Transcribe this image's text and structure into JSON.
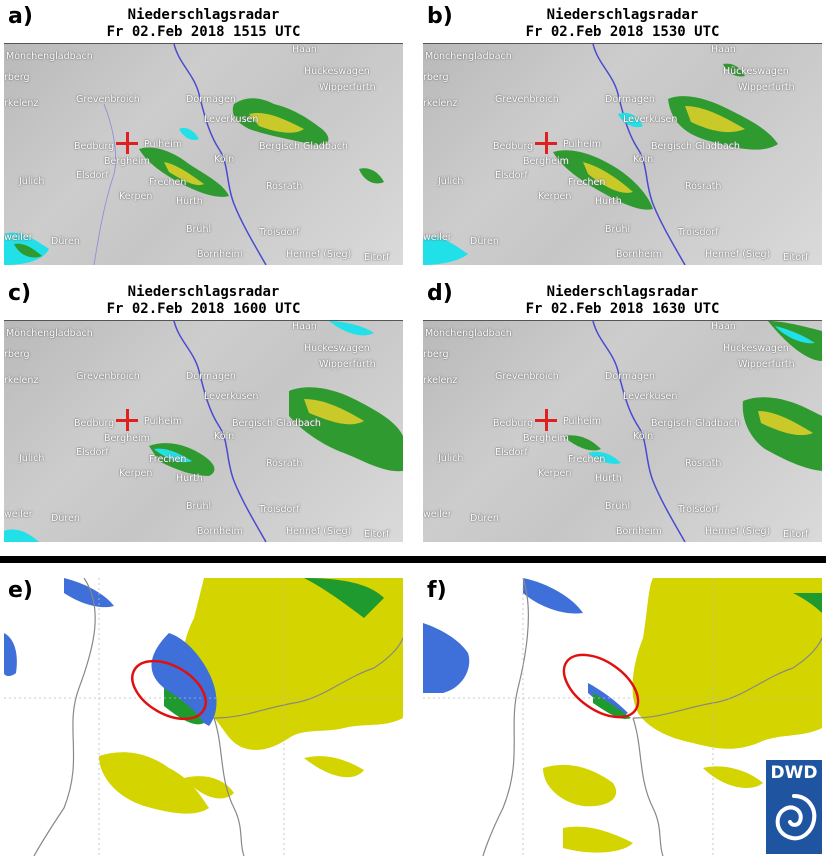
{
  "radar_title": "Niederschlagsradar",
  "radar_panels": [
    {
      "label": "a)",
      "timestamp": "Fr 02.Feb 2018 1515 UTC"
    },
    {
      "label": "b)",
      "timestamp": "Fr 02.Feb 2018 1530 UTC"
    },
    {
      "label": "c)",
      "timestamp": "Fr 02.Feb 2018 1600 UTC"
    },
    {
      "label": "d)",
      "timestamp": "Fr 02.Feb 2018 1630 UTC"
    }
  ],
  "towns": {
    "moenchengladbach": "Mönchengladbach",
    "berg": "rberg",
    "erkelenz": "rkelenz",
    "grevenbroich": "Grevenbroich",
    "dormagen": "Dormagen",
    "haan": "Haan",
    "radevormwald": "Radevormwald",
    "hueckeswagen": "Hückeswagen",
    "wipperfuerth": "Wipperfürth",
    "leverkusen": "Leverkusen",
    "bedburg": "Bedburg",
    "pulheim": "Pulheim",
    "bergheim": "Bergheim",
    "koeln": "Köln",
    "bergisch_gladbach": "Bergisch Gladbach",
    "juelich": "Jülich",
    "elsdorf": "Elsdorf",
    "frechen": "Frechen",
    "roesrath": "Rösrath",
    "kerpen": "Kerpen",
    "huerth": "Hürth",
    "weiler": "weiler",
    "dueren": "Düren",
    "bruehl": "Brühl",
    "troisdorf": "Troisdorf",
    "bornheim": "Bornheim",
    "hennef": "Hennef (Sieg)",
    "eitorf": "Eitorf"
  },
  "model_panels": [
    {
      "label": "e)"
    },
    {
      "label": "f)"
    }
  ],
  "logo": {
    "text": "DWD"
  },
  "colors": {
    "rain_light": "#22e0e8",
    "rain_medium": "#2f9a2f",
    "rain_strong": "#c9c92a",
    "model_yellow": "#d4d400",
    "model_blue": "#3f6fd8",
    "model_green": "#1f9a2f",
    "ellipse": "#e01010",
    "river": "#4a4ad0",
    "logo_bg": "#1f55a0"
  }
}
